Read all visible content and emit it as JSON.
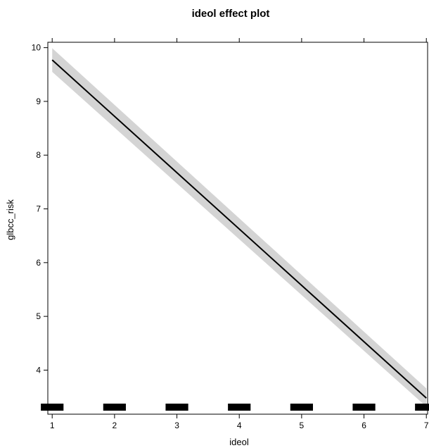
{
  "chart_data": {
    "type": "line",
    "title": "ideol effect plot",
    "xlabel": "ideol",
    "ylabel": "glbcc_risk",
    "xlim": [
      0.93,
      7.02
    ],
    "ylim": [
      3.18,
      10.1
    ],
    "x_ticks": [
      "1",
      "2",
      "3",
      "4",
      "5",
      "6",
      "7"
    ],
    "y_ticks": [
      "4",
      "5",
      "6",
      "7",
      "8",
      "9",
      "10"
    ],
    "series": [
      {
        "x": [
          1,
          7
        ],
        "y": [
          9.77,
          3.48
        ],
        "ci_lower": [
          9.55,
          3.32
        ],
        "ci_upper": [
          9.99,
          3.66
        ],
        "color": "#000000",
        "band_color": "#d4d4d4"
      }
    ],
    "rug_groups": [
      1,
      2,
      3,
      4,
      5,
      6,
      7
    ],
    "grid": false,
    "legend": "none"
  }
}
